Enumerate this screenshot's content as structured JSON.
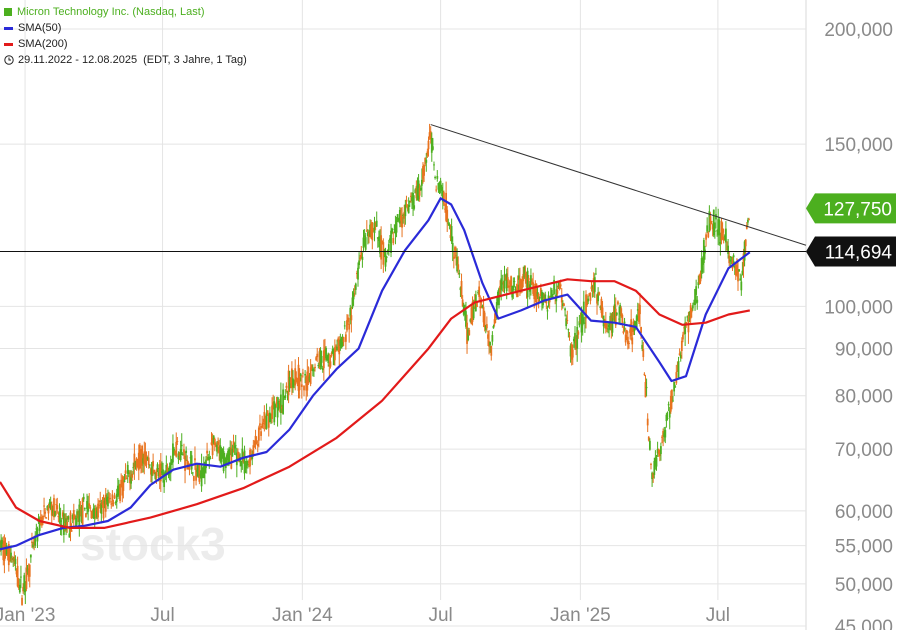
{
  "legend": {
    "title": "Micron Technology Inc. (Nasdaq, Last)",
    "sma50": "SMA(50)",
    "sma200": "SMA(200)",
    "range": "29.11.2022 - 12.08.2025",
    "range_note": "(EDT, 3 Jahre, 1 Tag)"
  },
  "watermark": "stock3",
  "colors": {
    "up": "#4caf1f",
    "down": "#e8731f",
    "sma50": "#2a2ad8",
    "sma200": "#e21a1a",
    "price_badge": "#4caf1f",
    "grid": "#e4e4e4",
    "axis_text": "#8a8a8a"
  },
  "chart_data": {
    "type": "line",
    "title": "Micron Technology Inc. (Nasdaq, Last)",
    "y_scale": "log",
    "ylim": [
      45,
      215
    ],
    "y_ticks": [
      {
        "v": 45,
        "label": "45,000"
      },
      {
        "v": 50,
        "label": "50,000"
      },
      {
        "v": 55,
        "label": "55,000"
      },
      {
        "v": 60,
        "label": "60,000"
      },
      {
        "v": 70,
        "label": "70,000"
      },
      {
        "v": 80,
        "label": "80,000"
      },
      {
        "v": 90,
        "label": "90,000"
      },
      {
        "v": 100,
        "label": "100,000"
      },
      {
        "v": 150,
        "label": "150,000"
      },
      {
        "v": 200,
        "label": "200,000"
      }
    ],
    "xlim": [
      "2022-11-29",
      "2025-10-25"
    ],
    "x_ticks": [
      {
        "date": "2023-01-01",
        "label": "Jan '23"
      },
      {
        "date": "2023-07-01",
        "label": "Jul"
      },
      {
        "date": "2024-01-01",
        "label": "Jan '24"
      },
      {
        "date": "2024-07-01",
        "label": "Jul"
      },
      {
        "date": "2025-01-01",
        "label": "Jan '25"
      },
      {
        "date": "2025-07-01",
        "label": "Jul"
      }
    ],
    "last_price": {
      "value": 127.75,
      "label": "127,750"
    },
    "horizontal_line": {
      "value": 114.694,
      "label": "114,694"
    },
    "trendline": {
      "from": {
        "date": "2024-06-18",
        "value": 157.5
      },
      "to": {
        "date": "2025-10-25",
        "value": 116.5
      }
    },
    "series": [
      {
        "name": "Micron Technology Inc. (Nasdaq, Last)",
        "points": [
          [
            "2022-11-29",
            55.0
          ],
          [
            "2022-12-15",
            53.5
          ],
          [
            "2022-12-28",
            49.0
          ],
          [
            "2023-01-05",
            51.5
          ],
          [
            "2023-01-20",
            58.0
          ],
          [
            "2023-02-05",
            61.0
          ],
          [
            "2023-02-20",
            58.0
          ],
          [
            "2023-03-08",
            58.5
          ],
          [
            "2023-03-22",
            60.5
          ],
          [
            "2023-04-05",
            59.5
          ],
          [
            "2023-04-20",
            61.5
          ],
          [
            "2023-05-05",
            62.5
          ],
          [
            "2023-05-20",
            66.0
          ],
          [
            "2023-06-05",
            69.5
          ],
          [
            "2023-06-20",
            66.0
          ],
          [
            "2023-07-05",
            65.5
          ],
          [
            "2023-07-20",
            71.0
          ],
          [
            "2023-08-05",
            67.5
          ],
          [
            "2023-08-20",
            65.5
          ],
          [
            "2023-09-05",
            70.5
          ],
          [
            "2023-09-20",
            68.5
          ],
          [
            "2023-10-05",
            69.5
          ],
          [
            "2023-10-20",
            67.0
          ],
          [
            "2023-11-05",
            72.5
          ],
          [
            "2023-11-20",
            76.5
          ],
          [
            "2023-12-05",
            78.5
          ],
          [
            "2023-12-20",
            84.5
          ],
          [
            "2024-01-05",
            82.0
          ],
          [
            "2024-01-20",
            88.0
          ],
          [
            "2024-02-05",
            88.0
          ],
          [
            "2024-02-20",
            90.0
          ],
          [
            "2024-03-05",
            98.0
          ],
          [
            "2024-03-20",
            115.0
          ],
          [
            "2024-04-05",
            122.0
          ],
          [
            "2024-04-20",
            112.0
          ],
          [
            "2024-05-05",
            124.0
          ],
          [
            "2024-05-20",
            128.0
          ],
          [
            "2024-06-05",
            135.0
          ],
          [
            "2024-06-18",
            153.0
          ],
          [
            "2024-06-25",
            138.0
          ],
          [
            "2024-07-05",
            132.0
          ],
          [
            "2024-07-20",
            115.0
          ],
          [
            "2024-08-05",
            93.0
          ],
          [
            "2024-08-20",
            104.0
          ],
          [
            "2024-09-05",
            90.0
          ],
          [
            "2024-09-20",
            108.0
          ],
          [
            "2024-10-05",
            103.0
          ],
          [
            "2024-10-20",
            107.0
          ],
          [
            "2024-11-05",
            103.0
          ],
          [
            "2024-11-20",
            101.0
          ],
          [
            "2024-12-05",
            106.0
          ],
          [
            "2024-12-20",
            89.0
          ],
          [
            "2025-01-05",
            98.0
          ],
          [
            "2025-01-20",
            106.0
          ],
          [
            "2025-02-05",
            94.0
          ],
          [
            "2025-02-20",
            100.0
          ],
          [
            "2025-03-05",
            92.0
          ],
          [
            "2025-03-20",
            98.0
          ],
          [
            "2025-04-05",
            65.0
          ],
          [
            "2025-04-20",
            72.0
          ],
          [
            "2025-05-05",
            82.0
          ],
          [
            "2025-05-20",
            95.0
          ],
          [
            "2025-06-05",
            104.0
          ],
          [
            "2025-06-20",
            125.0
          ],
          [
            "2025-07-05",
            121.0
          ],
          [
            "2025-07-20",
            112.0
          ],
          [
            "2025-08-01",
            106.0
          ],
          [
            "2025-08-12",
            127.75
          ]
        ]
      },
      {
        "name": "SMA(50)",
        "points": [
          [
            "2022-11-29",
            54.5
          ],
          [
            "2022-12-20",
            55.0
          ],
          [
            "2023-01-20",
            56.5
          ],
          [
            "2023-02-20",
            57.5
          ],
          [
            "2023-03-20",
            57.8
          ],
          [
            "2023-04-20",
            58.5
          ],
          [
            "2023-05-20",
            60.5
          ],
          [
            "2023-06-15",
            64.0
          ],
          [
            "2023-07-15",
            66.5
          ],
          [
            "2023-08-15",
            67.5
          ],
          [
            "2023-09-15",
            67.0
          ],
          [
            "2023-10-15",
            68.5
          ],
          [
            "2023-11-15",
            69.5
          ],
          [
            "2023-12-15",
            73.5
          ],
          [
            "2024-01-15",
            80.0
          ],
          [
            "2024-02-15",
            85.5
          ],
          [
            "2024-03-15",
            90.0
          ],
          [
            "2024-04-15",
            104.0
          ],
          [
            "2024-05-15",
            115.0
          ],
          [
            "2024-06-15",
            124.0
          ],
          [
            "2024-07-01",
            131.0
          ],
          [
            "2024-07-15",
            129.0
          ],
          [
            "2024-08-01",
            121.0
          ],
          [
            "2024-08-25",
            106.0
          ],
          [
            "2024-09-15",
            97.0
          ],
          [
            "2024-10-15",
            99.0
          ],
          [
            "2024-11-15",
            101.5
          ],
          [
            "2024-12-15",
            103.0
          ],
          [
            "2025-01-15",
            96.5
          ],
          [
            "2025-02-15",
            96.0
          ],
          [
            "2025-03-15",
            95.0
          ],
          [
            "2025-04-15",
            87.0
          ],
          [
            "2025-05-01",
            83.0
          ],
          [
            "2025-05-20",
            84.0
          ],
          [
            "2025-06-15",
            98.0
          ],
          [
            "2025-07-15",
            110.0
          ],
          [
            "2025-08-12",
            114.5
          ]
        ]
      },
      {
        "name": "SMA(200)",
        "points": [
          [
            "2022-11-29",
            64.5
          ],
          [
            "2022-12-20",
            60.5
          ],
          [
            "2023-01-20",
            58.5
          ],
          [
            "2023-03-01",
            57.5
          ],
          [
            "2023-04-15",
            57.5
          ],
          [
            "2023-06-15",
            59.0
          ],
          [
            "2023-08-15",
            61.0
          ],
          [
            "2023-10-15",
            63.5
          ],
          [
            "2023-12-15",
            67.0
          ],
          [
            "2024-02-15",
            72.0
          ],
          [
            "2024-04-15",
            79.0
          ],
          [
            "2024-06-15",
            90.0
          ],
          [
            "2024-07-15",
            97.0
          ],
          [
            "2024-08-15",
            101.0
          ],
          [
            "2024-10-15",
            104.0
          ],
          [
            "2024-12-15",
            107.0
          ],
          [
            "2025-01-15",
            106.5
          ],
          [
            "2025-02-15",
            106.5
          ],
          [
            "2025-03-15",
            104.0
          ],
          [
            "2025-04-15",
            98.0
          ],
          [
            "2025-05-15",
            95.5
          ],
          [
            "2025-06-15",
            96.0
          ],
          [
            "2025-07-15",
            98.0
          ],
          [
            "2025-08-12",
            99.0
          ]
        ]
      }
    ]
  }
}
